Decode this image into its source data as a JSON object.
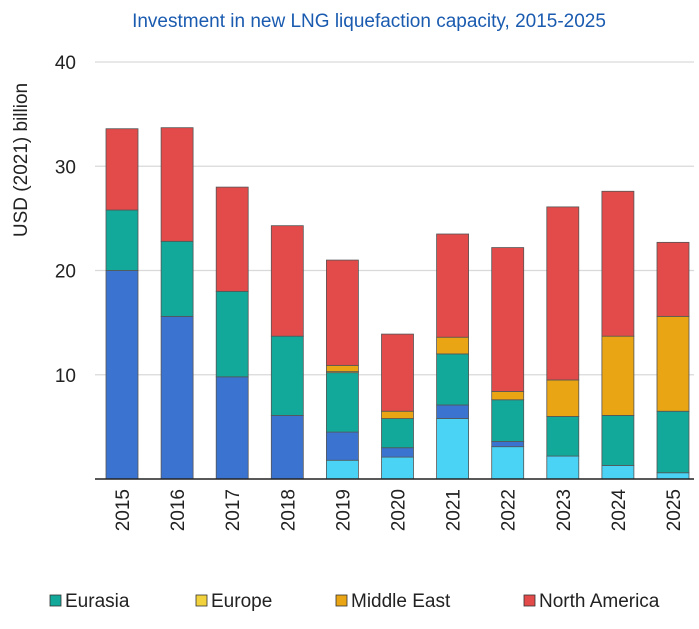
{
  "chart_data": {
    "type": "bar",
    "stacked": true,
    "title": "Investment in new LNG liquefaction capacity, 2015-2025",
    "xlabel": "",
    "ylabel": "USD (2021) billion",
    "ylim": [
      0,
      40
    ],
    "yticks": [
      10,
      20,
      30,
      40
    ],
    "grid": true,
    "legend_position": "bottom",
    "categories": [
      "2015",
      "2016",
      "2017",
      "2018",
      "2019",
      "2020",
      "2021",
      "2022",
      "2023",
      "2024",
      "2025"
    ],
    "series": [
      {
        "color": "#4ad3f5",
        "values": [
          0,
          0,
          0,
          0,
          1.8,
          2.1,
          5.8,
          3.1,
          2.2,
          1.3,
          0.6
        ]
      },
      {
        "color": "#3b73d1",
        "values": [
          20.0,
          15.6,
          9.8,
          6.1,
          2.7,
          0.9,
          1.3,
          0.5,
          0,
          0,
          0
        ]
      },
      {
        "name": "Eurasia",
        "color": "#12a89a",
        "values": [
          5.8,
          7.2,
          8.2,
          7.6,
          5.7,
          2.8,
          4.9,
          4.0,
          3.8,
          4.8,
          5.9
        ]
      },
      {
        "name": "Europe",
        "color": "#f2d23c",
        "values": [
          0,
          0,
          0,
          0,
          0.1,
          0,
          0,
          0,
          0,
          0,
          0
        ]
      },
      {
        "name": "Middle East",
        "color": "#eaa514",
        "values": [
          0,
          0,
          0,
          0,
          0.6,
          0.7,
          1.6,
          0.8,
          3.5,
          7.6,
          9.1
        ]
      },
      {
        "name": "North America",
        "color": "#e34a4a",
        "values": [
          7.8,
          10.9,
          10.0,
          10.6,
          10.1,
          7.4,
          9.9,
          13.8,
          16.6,
          13.9,
          7.1
        ]
      }
    ]
  },
  "colors": {
    "title": "#1a5bb0",
    "grid": "#d9d9d9",
    "axis": "#222222",
    "bar_border": "#555555"
  }
}
